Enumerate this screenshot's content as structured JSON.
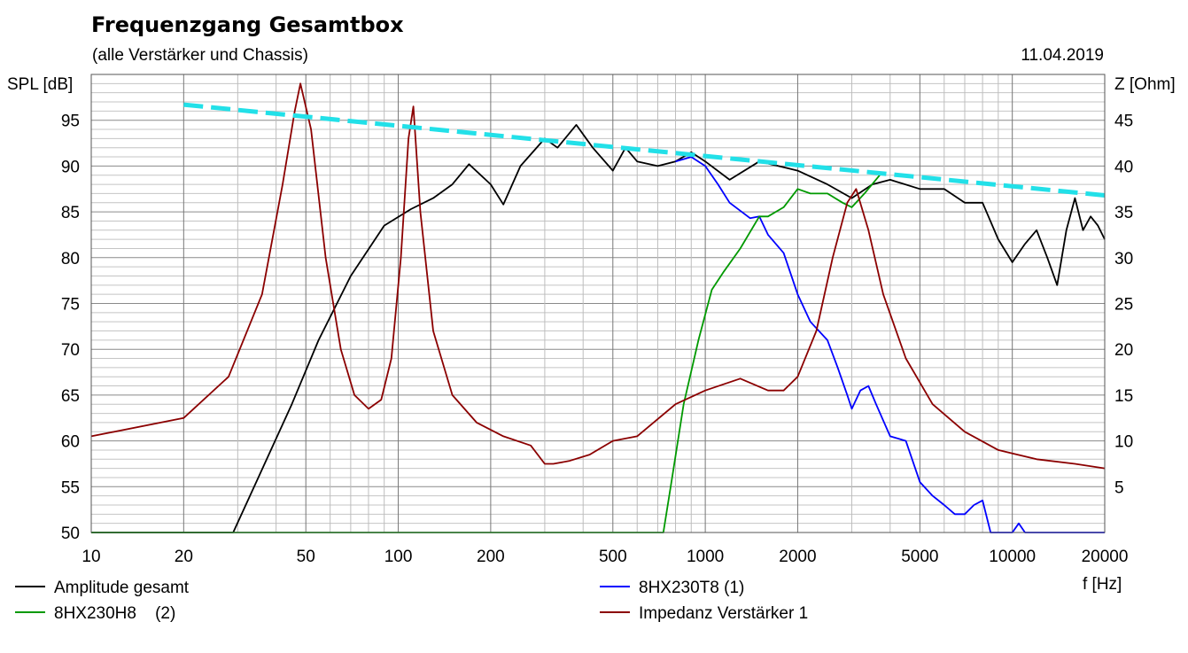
{
  "chart_data": {
    "type": "line",
    "title": "Frequenzgang Gesamtbox",
    "subtitle": "(alle Verstärker und Chassis)",
    "date": "11.04.2019",
    "xlabel": "f [Hz]",
    "ylabel_left": "SPL [dB]",
    "ylabel_right": "Z [Ohm]",
    "x_scale": "log",
    "xlim": [
      10,
      20000
    ],
    "ylim_left": [
      50,
      100
    ],
    "ylim_right": [
      0,
      50
    ],
    "grid": true,
    "x_ticks": [
      10,
      20,
      50,
      100,
      200,
      500,
      1000,
      2000,
      5000,
      10000,
      20000
    ],
    "x_tick_labels": [
      "10",
      "20",
      "50",
      "100",
      "200",
      "500",
      "1000",
      "2000",
      "5000",
      "10000",
      "20000"
    ],
    "y_ticks_left": [
      50,
      55,
      60,
      65,
      70,
      75,
      80,
      85,
      90,
      95
    ],
    "y_ticks_right": [
      5,
      10,
      15,
      20,
      25,
      30,
      35,
      40,
      45
    ],
    "series": [
      {
        "name": "Amplitude gesamt",
        "color": "#000000",
        "axis": "left",
        "x": [
          10,
          29,
          35,
          45,
          55,
          70,
          90,
          110,
          130,
          150,
          170,
          200,
          220,
          250,
          300,
          330,
          380,
          430,
          500,
          550,
          600,
          700,
          800,
          900,
          1000,
          1200,
          1500,
          2000,
          2500,
          3000,
          3500,
          4000,
          5000,
          6000,
          7000,
          8000,
          9000,
          10000,
          11000,
          12000,
          13000,
          14000,
          15000,
          16000,
          17000,
          18000,
          19000,
          20000
        ],
        "y": [
          50,
          50,
          56,
          64,
          71,
          78,
          83.5,
          85.3,
          86.5,
          88,
          90.2,
          88,
          85.8,
          90,
          93,
          92,
          94.5,
          92,
          89.5,
          92,
          90.5,
          90,
          90.5,
          91.5,
          90.5,
          88.5,
          90.5,
          89.5,
          88,
          86.5,
          88,
          88.5,
          87.5,
          87.5,
          86,
          86,
          82,
          79.5,
          81.5,
          83,
          80,
          77,
          83,
          86.5,
          83,
          84.5,
          83.5,
          82
        ]
      },
      {
        "name": "8HX230T8 (1)",
        "color": "#0000ff",
        "axis": "left",
        "x": [
          800,
          900,
          1000,
          1100,
          1200,
          1400,
          1500,
          1600,
          1800,
          2000,
          2200,
          2500,
          2700,
          2900,
          3000,
          3200,
          3400,
          3600,
          4000,
          4500,
          5000,
          5500,
          6000,
          6500,
          7000,
          7500,
          8000,
          8500,
          9000,
          10000,
          10500,
          11000,
          15000,
          20000
        ],
        "y": [
          90.5,
          91,
          90,
          88,
          86,
          84.3,
          84.5,
          82.5,
          80.5,
          76,
          73,
          71,
          68,
          65,
          63.5,
          65.5,
          66,
          64,
          60.5,
          60,
          55.5,
          54,
          53,
          52,
          52,
          53,
          53.5,
          50,
          50,
          50,
          51,
          50,
          50,
          50
        ]
      },
      {
        "name": "8HX230H8 (2)",
        "color": "#009900",
        "axis": "left",
        "x": [
          10,
          730,
          780,
          850,
          950,
          1050,
          1150,
          1300,
          1500,
          1600,
          1800,
          2000,
          2200,
          2500,
          2800,
          3000,
          3300,
          3700
        ],
        "y": [
          50,
          50,
          56,
          64,
          71,
          76.5,
          78.5,
          81,
          84.5,
          84.5,
          85.5,
          87.5,
          87,
          87,
          86,
          85.5,
          87,
          89
        ]
      },
      {
        "name": "Impedanz Verstärker 1",
        "color": "#8b0000",
        "axis": "right",
        "x": [
          10,
          20,
          28,
          36,
          42,
          46,
          48,
          52,
          58,
          65,
          72,
          80,
          88,
          95,
          102,
          108,
          112,
          118,
          130,
          150,
          180,
          220,
          270,
          300,
          320,
          360,
          420,
          500,
          600,
          800,
          1000,
          1300,
          1600,
          1800,
          2000,
          2300,
          2600,
          2900,
          3100,
          3400,
          3800,
          4500,
          5500,
          7000,
          9000,
          12000,
          16000,
          20000
        ],
        "y": [
          10.5,
          12.5,
          17,
          26,
          38,
          46,
          49,
          44,
          30,
          20,
          15,
          13.5,
          14.5,
          19,
          30,
          43,
          46.5,
          35,
          22,
          15,
          12,
          10.5,
          9.5,
          7.5,
          7.5,
          7.8,
          8.5,
          10,
          10.5,
          14,
          15.5,
          16.8,
          15.5,
          15.5,
          17,
          22,
          30,
          36,
          37.5,
          33,
          26,
          19,
          14,
          11,
          9,
          8,
          7.5,
          7
        ]
      },
      {
        "name": "",
        "color": "#22e0e8",
        "axis": "left",
        "dashed": true,
        "x": [
          20,
          20000
        ],
        "y": [
          96.7,
          86.8
        ]
      }
    ],
    "legend": [
      {
        "label": "Amplitude gesamt",
        "color": "#000000"
      },
      {
        "label": "8HX230T8 (1)",
        "color": "#0000ff"
      },
      {
        "label": "8HX230H8    (2)",
        "color": "#009900"
      },
      {
        "label": "Impedanz Verstärker 1",
        "color": "#8b0000"
      }
    ]
  }
}
